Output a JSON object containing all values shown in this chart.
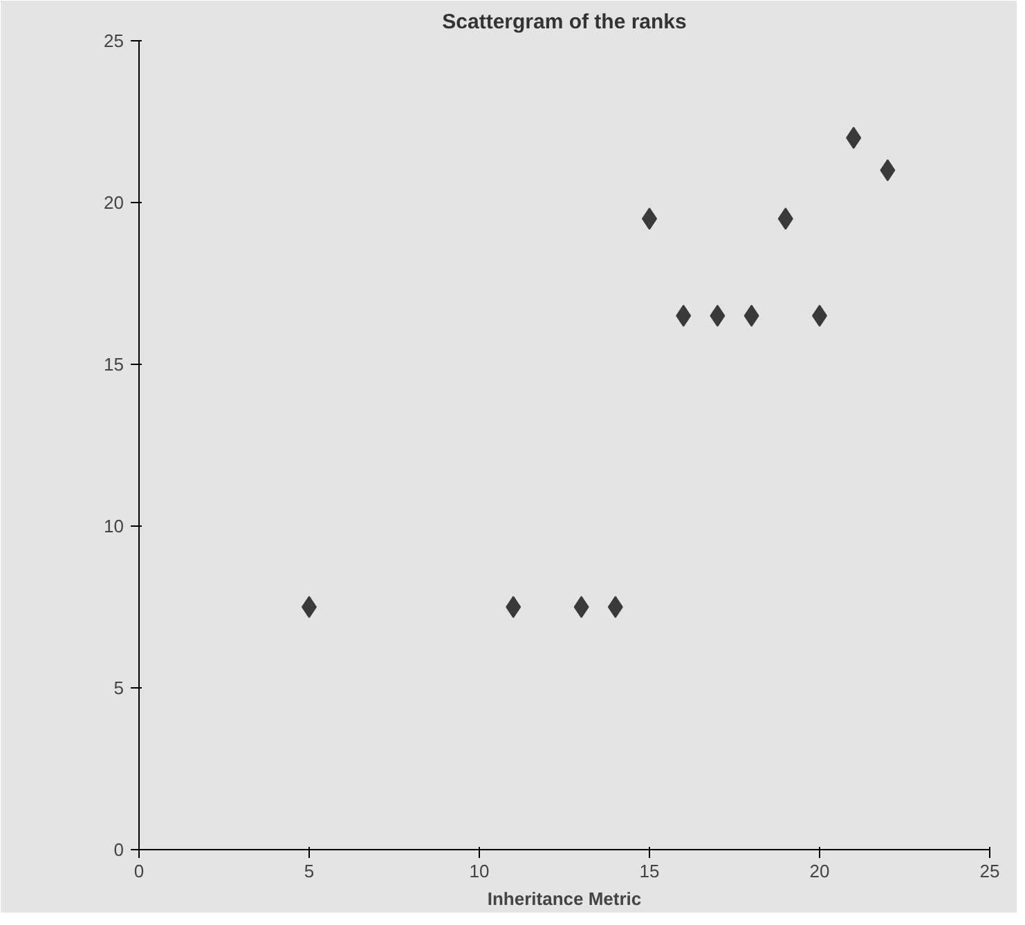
{
  "chart_data": {
    "type": "scatter",
    "title": "Scattergram of the ranks",
    "xlabel": "Inheritance Metric",
    "x": [
      5,
      11,
      13,
      14,
      15,
      16,
      17,
      18,
      19,
      20,
      21,
      22
    ],
    "values": [
      7.5,
      7.5,
      7.5,
      7.5,
      19.5,
      16.5,
      16.5,
      16.5,
      19.5,
      16.5,
      22,
      21
    ],
    "color": "#3a3a3a",
    "marker": "diamond",
    "xlim": [
      0,
      25
    ],
    "ylim": [
      0,
      25
    ],
    "xticks": [
      0,
      5,
      10,
      15,
      20,
      25
    ],
    "yticks": [
      0,
      5,
      10,
      15,
      20,
      25
    ]
  }
}
